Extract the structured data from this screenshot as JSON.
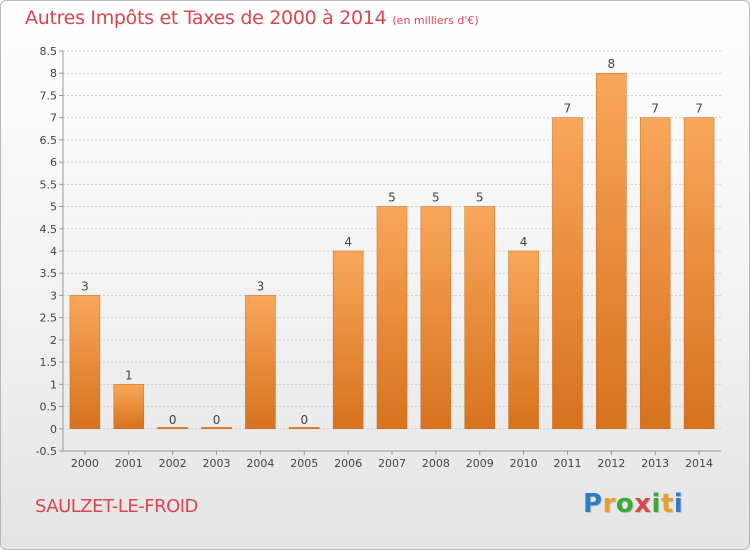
{
  "title": "Autres Impôts et Taxes de 2000 à 2014",
  "unit_note": "(en milliers d'€)",
  "location": "SAULZET-LE-FROID",
  "logo": {
    "text": "Proxiti",
    "letters": [
      "P",
      "r",
      "o",
      "x",
      "i",
      "t",
      "i"
    ],
    "colors": [
      "#2e7bc6",
      "#e8a02b",
      "#3aa935",
      "#d8474f",
      "#3aa935",
      "#e8a02b",
      "#2e7bc6"
    ]
  },
  "colors": {
    "title": "#d8474f",
    "bar_light": "#f8a75a",
    "bar_dark": "#d7721d",
    "grid": "#cfcfcf",
    "axis": "#9a9a9a",
    "label": "#444444"
  },
  "chart_data": {
    "type": "bar",
    "categories": [
      "2000",
      "2001",
      "2002",
      "2003",
      "2004",
      "2005",
      "2006",
      "2007",
      "2008",
      "2009",
      "2010",
      "2011",
      "2012",
      "2013",
      "2014"
    ],
    "values": [
      3,
      1,
      0,
      0,
      3,
      0,
      4,
      5,
      5,
      5,
      4,
      7,
      8,
      7,
      7
    ],
    "data_labels": [
      "3",
      "1",
      "0",
      "0",
      "3",
      "0",
      "4",
      "5",
      "5",
      "5",
      "4",
      "7",
      "8",
      "7",
      "7"
    ],
    "y_ticks": [
      "8.5",
      "8",
      "7.5",
      "7",
      "6.5",
      "6",
      "5.5",
      "5",
      "4.5",
      "4",
      "3.5",
      "3",
      "2.5",
      "2",
      "1.5",
      "1",
      "0.5",
      "0",
      "-0.5"
    ],
    "ylim": [
      -0.5,
      8.5
    ],
    "grid": true,
    "legend": "none"
  }
}
